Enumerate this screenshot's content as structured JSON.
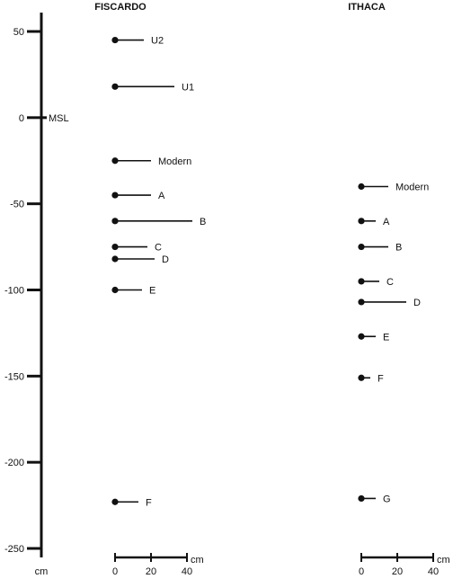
{
  "chart_data": {
    "type": "scatter",
    "y_axis": {
      "unit_label": "cm",
      "ylim": [
        -250,
        50
      ],
      "ticks": [
        50,
        0,
        -50,
        -100,
        -150,
        -200,
        -250
      ],
      "reference_label": "MSL",
      "reference_value": 0
    },
    "panels": [
      {
        "title": "FISCARDO",
        "scale": {
          "unit_label": "cm",
          "ticks": [
            0,
            20,
            40
          ],
          "range": [
            0,
            40
          ]
        },
        "points": [
          {
            "label": "U2",
            "elevation": 45,
            "length": 16
          },
          {
            "label": "U1",
            "elevation": 18,
            "length": 33
          },
          {
            "label": "Modern",
            "elevation": -25,
            "length": 20
          },
          {
            "label": "A",
            "elevation": -45,
            "length": 20
          },
          {
            "label": "B",
            "elevation": -60,
            "length": 43
          },
          {
            "label": "C",
            "elevation": -75,
            "length": 18
          },
          {
            "label": "D",
            "elevation": -82,
            "length": 22
          },
          {
            "label": "E",
            "elevation": -100,
            "length": 15
          },
          {
            "label": "F",
            "elevation": -223,
            "length": 13
          }
        ]
      },
      {
        "title": "ITHACA",
        "scale": {
          "unit_label": "cm",
          "ticks": [
            0,
            20,
            40
          ],
          "range": [
            0,
            40
          ]
        },
        "points": [
          {
            "label": "Modern",
            "elevation": -40,
            "length": 15
          },
          {
            "label": "A",
            "elevation": -60,
            "length": 8
          },
          {
            "label": "B",
            "elevation": -75,
            "length": 15
          },
          {
            "label": "C",
            "elevation": -95,
            "length": 10
          },
          {
            "label": "D",
            "elevation": -107,
            "length": 25
          },
          {
            "label": "E",
            "elevation": -127,
            "length": 8
          },
          {
            "label": "F",
            "elevation": -151,
            "length": 5
          },
          {
            "label": "G",
            "elevation": -221,
            "length": 8
          }
        ]
      }
    ]
  }
}
